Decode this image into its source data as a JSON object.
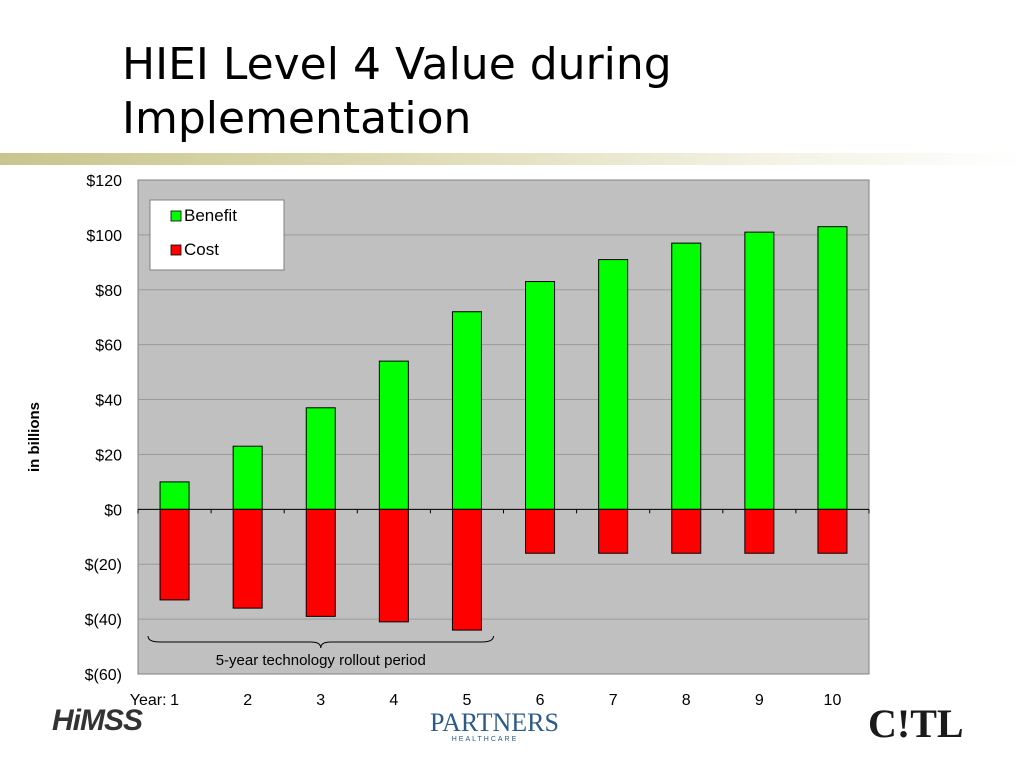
{
  "slide": {
    "title": "HIEI Level 4 Value during Implementation"
  },
  "logos": {
    "himss": "HiMSS",
    "partners": "PARTNERS",
    "partners_sub": "HEALTHCARE",
    "citl": "C!TL"
  },
  "chart_data": {
    "type": "bar",
    "stacked": true,
    "categories": [
      "1",
      "2",
      "3",
      "4",
      "5",
      "6",
      "7",
      "8",
      "9",
      "10"
    ],
    "x_prefix_label": "Year:",
    "ylabel": "in  billions",
    "ylim": [
      -60,
      120
    ],
    "yticks": [
      -60,
      -40,
      -20,
      0,
      20,
      40,
      60,
      80,
      100,
      120
    ],
    "ytick_labels": [
      "$(60)",
      "$(40)",
      "$(20)",
      "$0",
      "$20",
      "$40",
      "$60",
      "$80",
      "$100",
      "$120"
    ],
    "grid": true,
    "legend_position": "top-left",
    "series": [
      {
        "name": "Benefit",
        "color": "#00ff00",
        "values": [
          10,
          23,
          37,
          54,
          72,
          83,
          91,
          97,
          101,
          103
        ]
      },
      {
        "name": "Cost",
        "color": "#ff0000",
        "values": [
          -33,
          -36,
          -39,
          -41,
          -44,
          -16,
          -16,
          -16,
          -16,
          -16
        ]
      }
    ],
    "plot_background": "#c0c0c0",
    "annotation": {
      "text": "5-year technology rollout period",
      "span_categories": [
        "1",
        "5"
      ]
    }
  }
}
